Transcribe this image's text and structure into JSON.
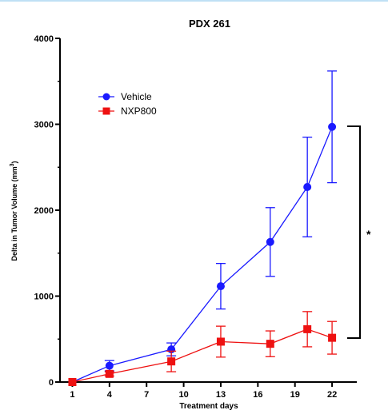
{
  "chart_data": {
    "type": "line",
    "title": "PDX 261",
    "xlabel": "Treatment days",
    "ylabel_main": "Delta in Tumor Volume (mm",
    "ylabel_sup": "3",
    "ylabel_end": ")",
    "xlim": [
      0,
      24
    ],
    "ylim": [
      0,
      4000
    ],
    "xticks": [
      1,
      4,
      7,
      10,
      13,
      16,
      19,
      22
    ],
    "yticks": [
      0,
      1000,
      2000,
      3000,
      4000
    ],
    "legend_position": "top-left",
    "significance_label": "*",
    "series": [
      {
        "name": "Vehicle",
        "color": "#1a1aff",
        "marker": "circle",
        "x": [
          1,
          4,
          9,
          13,
          17,
          20,
          22
        ],
        "y": [
          0,
          190,
          380,
          1115,
          1630,
          2270,
          2970
        ],
        "err": [
          0,
          60,
          75,
          265,
          400,
          580,
          650
        ]
      },
      {
        "name": "NXP800",
        "color": "#ee1111",
        "marker": "square",
        "x": [
          1,
          4,
          9,
          13,
          17,
          20,
          22
        ],
        "y": [
          0,
          95,
          240,
          470,
          445,
          615,
          515
        ],
        "err": [
          0,
          25,
          120,
          180,
          150,
          205,
          190
        ]
      }
    ]
  }
}
